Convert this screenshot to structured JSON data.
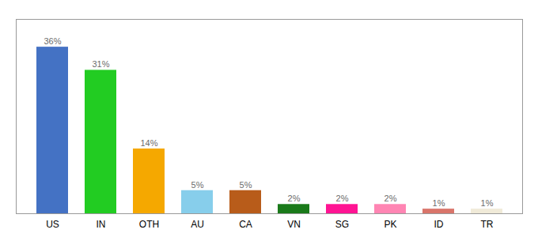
{
  "chart_data": {
    "type": "bar",
    "categories": [
      "US",
      "IN",
      "OTH",
      "AU",
      "CA",
      "VN",
      "SG",
      "PK",
      "ID",
      "TR"
    ],
    "values": [
      36,
      31,
      14,
      5,
      5,
      2,
      2,
      2,
      1,
      1
    ],
    "value_labels": [
      "36%",
      "31%",
      "14%",
      "5%",
      "5%",
      "2%",
      "2%",
      "2%",
      "1%",
      "1%"
    ],
    "data_labels": true,
    "colors": [
      "#4472c4",
      "#22cc22",
      "#f5a800",
      "#87ceeb",
      "#b85c1a",
      "#1a7a1a",
      "#ff1493",
      "#ff85b3",
      "#d9756a",
      "#f0ead8"
    ],
    "ylim": [
      0,
      42
    ],
    "tick_labels": "x"
  }
}
